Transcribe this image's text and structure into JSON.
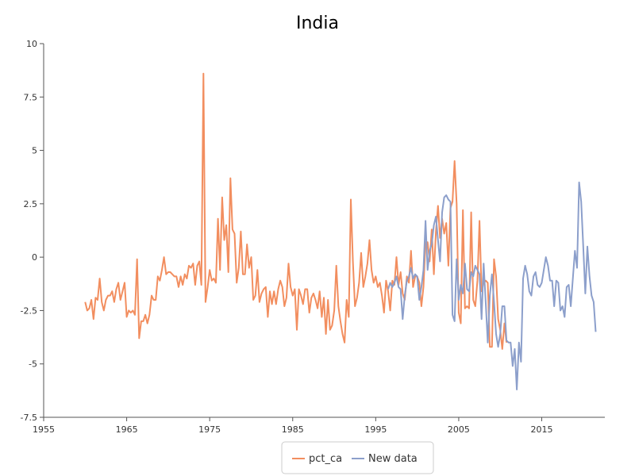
{
  "chart_data": {
    "type": "line",
    "title": "India",
    "xlabel": "",
    "ylabel": "",
    "xlim": [
      1955,
      2022.6
    ],
    "ylim": [
      -7.5,
      10
    ],
    "x_ticks": [
      1955,
      1965,
      1975,
      1985,
      1995,
      2005,
      2015
    ],
    "x_tick_labels": [
      "1955",
      "1965",
      "1975",
      "1985",
      "1995",
      "2005",
      "2015"
    ],
    "y_ticks": [
      -7.5,
      -5,
      -2.5,
      0,
      2.5,
      5,
      7.5,
      10
    ],
    "y_tick_labels": [
      "-7.5",
      "-5",
      "-2.5",
      "0",
      "2.5",
      "5",
      "7.5",
      "10"
    ],
    "grid": false,
    "legend_position": "bottom-center",
    "series": [
      {
        "name": "pct_ca",
        "color": "#f28e5f",
        "points": [
          [
            1960.0,
            -2.1
          ],
          [
            1960.25,
            -2.5
          ],
          [
            1960.5,
            -2.4
          ],
          [
            1960.75,
            -2.0
          ],
          [
            1961.0,
            -2.9
          ],
          [
            1961.25,
            -1.9
          ],
          [
            1961.5,
            -2.0
          ],
          [
            1961.75,
            -1.0
          ],
          [
            1962.0,
            -2.1
          ],
          [
            1962.25,
            -2.5
          ],
          [
            1962.5,
            -2.0
          ],
          [
            1962.75,
            -1.8
          ],
          [
            1963.0,
            -1.8
          ],
          [
            1963.25,
            -1.6
          ],
          [
            1963.5,
            -2.1
          ],
          [
            1963.75,
            -1.5
          ],
          [
            1964.0,
            -1.2
          ],
          [
            1964.25,
            -2.0
          ],
          [
            1964.5,
            -1.6
          ],
          [
            1964.75,
            -1.2
          ],
          [
            1965.0,
            -2.8
          ],
          [
            1965.25,
            -2.5
          ],
          [
            1965.5,
            -2.6
          ],
          [
            1965.75,
            -2.5
          ],
          [
            1966.0,
            -2.7
          ],
          [
            1966.25,
            -0.1
          ],
          [
            1966.5,
            -3.8
          ],
          [
            1966.75,
            -3.0
          ],
          [
            1967.0,
            -3.0
          ],
          [
            1967.25,
            -2.7
          ],
          [
            1967.5,
            -3.1
          ],
          [
            1967.75,
            -2.7
          ],
          [
            1968.0,
            -1.8
          ],
          [
            1968.25,
            -2.0
          ],
          [
            1968.5,
            -2.0
          ],
          [
            1968.75,
            -0.9
          ],
          [
            1969.0,
            -1.1
          ],
          [
            1969.25,
            -0.6
          ],
          [
            1969.5,
            0.0
          ],
          [
            1969.75,
            -0.8
          ],
          [
            1970.0,
            -0.7
          ],
          [
            1970.25,
            -0.7
          ],
          [
            1970.5,
            -0.8
          ],
          [
            1970.75,
            -0.9
          ],
          [
            1971.0,
            -0.9
          ],
          [
            1971.25,
            -1.4
          ],
          [
            1971.5,
            -0.9
          ],
          [
            1971.75,
            -1.3
          ],
          [
            1972.0,
            -0.8
          ],
          [
            1972.25,
            -1.0
          ],
          [
            1972.5,
            -0.4
          ],
          [
            1972.75,
            -0.5
          ],
          [
            1973.0,
            -0.3
          ],
          [
            1973.25,
            -1.3
          ],
          [
            1973.5,
            -0.4
          ],
          [
            1973.75,
            -0.2
          ],
          [
            1974.0,
            -1.3
          ],
          [
            1974.25,
            8.6
          ],
          [
            1974.5,
            -2.1
          ],
          [
            1974.75,
            -1.4
          ],
          [
            1975.0,
            -0.6
          ],
          [
            1975.25,
            -1.1
          ],
          [
            1975.5,
            -1.0
          ],
          [
            1975.75,
            -1.2
          ],
          [
            1976.0,
            1.8
          ],
          [
            1976.25,
            -0.6
          ],
          [
            1976.5,
            2.8
          ],
          [
            1976.75,
            0.8
          ],
          [
            1977.0,
            1.5
          ],
          [
            1977.25,
            -0.7
          ],
          [
            1977.5,
            3.7
          ],
          [
            1977.75,
            1.3
          ],
          [
            1978.0,
            1.1
          ],
          [
            1978.25,
            -1.2
          ],
          [
            1978.5,
            -0.5
          ],
          [
            1978.75,
            1.2
          ],
          [
            1979.0,
            -0.8
          ],
          [
            1979.25,
            -0.8
          ],
          [
            1979.5,
            0.6
          ],
          [
            1979.75,
            -0.5
          ],
          [
            1980.0,
            0.0
          ],
          [
            1980.25,
            -2.0
          ],
          [
            1980.5,
            -1.8
          ],
          [
            1980.75,
            -0.6
          ],
          [
            1981.0,
            -2.1
          ],
          [
            1981.25,
            -1.7
          ],
          [
            1981.5,
            -1.5
          ],
          [
            1981.75,
            -1.4
          ],
          [
            1982.0,
            -2.8
          ],
          [
            1982.25,
            -1.6
          ],
          [
            1982.5,
            -2.2
          ],
          [
            1982.75,
            -1.6
          ],
          [
            1983.0,
            -2.2
          ],
          [
            1983.25,
            -1.5
          ],
          [
            1983.5,
            -1.1
          ],
          [
            1983.75,
            -1.4
          ],
          [
            1984.0,
            -2.3
          ],
          [
            1984.25,
            -1.9
          ],
          [
            1984.5,
            -0.3
          ],
          [
            1984.75,
            -1.4
          ],
          [
            1985.0,
            -1.8
          ],
          [
            1985.25,
            -1.5
          ],
          [
            1985.5,
            -3.4
          ],
          [
            1985.75,
            -1.5
          ],
          [
            1986.0,
            -1.8
          ],
          [
            1986.25,
            -2.2
          ],
          [
            1986.5,
            -1.5
          ],
          [
            1986.75,
            -1.5
          ],
          [
            1987.0,
            -2.6
          ],
          [
            1987.25,
            -1.9
          ],
          [
            1987.5,
            -1.7
          ],
          [
            1987.75,
            -2.0
          ],
          [
            1988.0,
            -2.4
          ],
          [
            1988.25,
            -1.6
          ],
          [
            1988.5,
            -2.8
          ],
          [
            1988.75,
            -1.9
          ],
          [
            1989.0,
            -3.6
          ],
          [
            1989.25,
            -2.0
          ],
          [
            1989.5,
            -3.4
          ],
          [
            1989.75,
            -3.2
          ],
          [
            1990.0,
            -2.5
          ],
          [
            1990.25,
            -0.4
          ],
          [
            1990.5,
            -2.3
          ],
          [
            1990.75,
            -3.0
          ],
          [
            1991.0,
            -3.6
          ],
          [
            1991.25,
            -4.0
          ],
          [
            1991.5,
            -2.0
          ],
          [
            1991.75,
            -2.8
          ],
          [
            1992.0,
            2.7
          ],
          [
            1992.25,
            -0.2
          ],
          [
            1992.5,
            -2.3
          ],
          [
            1992.75,
            -1.9
          ],
          [
            1993.0,
            -1.2
          ],
          [
            1993.25,
            0.2
          ],
          [
            1993.5,
            -1.4
          ],
          [
            1993.75,
            -0.9
          ],
          [
            1994.0,
            -0.3
          ],
          [
            1994.25,
            0.8
          ],
          [
            1994.5,
            -0.6
          ],
          [
            1994.75,
            -1.2
          ],
          [
            1995.0,
            -0.9
          ],
          [
            1995.25,
            -1.4
          ],
          [
            1995.5,
            -1.2
          ],
          [
            1995.75,
            -1.8
          ],
          [
            1996.0,
            -2.6
          ],
          [
            1996.25,
            -1.1
          ],
          [
            1996.5,
            -1.6
          ],
          [
            1996.75,
            -2.5
          ],
          [
            1997.0,
            -1.1
          ],
          [
            1997.25,
            -1.3
          ],
          [
            1997.5,
            0.0
          ],
          [
            1997.75,
            -1.3
          ],
          [
            1998.0,
            -0.7
          ],
          [
            1998.25,
            -1.7
          ],
          [
            1998.5,
            -2.0
          ],
          [
            1998.75,
            -0.9
          ],
          [
            1999.0,
            -1.2
          ],
          [
            1999.25,
            0.3
          ],
          [
            1999.5,
            -1.4
          ],
          [
            1999.75,
            -0.9
          ],
          [
            2000.0,
            -0.9
          ],
          [
            2000.25,
            -1.2
          ],
          [
            2000.5,
            -2.3
          ],
          [
            2000.75,
            -1.4
          ],
          [
            2001.0,
            0.7
          ],
          [
            2001.25,
            0.7
          ],
          [
            2001.5,
            -0.2
          ],
          [
            2001.75,
            1.3
          ],
          [
            2002.0,
            -0.8
          ],
          [
            2002.25,
            1.2
          ],
          [
            2002.5,
            2.4
          ],
          [
            2002.75,
            0.9
          ],
          [
            2003.0,
            1.8
          ],
          [
            2003.25,
            1.1
          ],
          [
            2003.5,
            1.6
          ],
          [
            2003.75,
            -0.4
          ],
          [
            2004.0,
            2.3
          ],
          [
            2004.25,
            2.6
          ],
          [
            2004.5,
            4.5
          ],
          [
            2004.75,
            2.5
          ],
          [
            2005.0,
            -2.6
          ],
          [
            2005.25,
            -3.1
          ],
          [
            2005.5,
            2.2
          ],
          [
            2005.75,
            -2.4
          ],
          [
            2006.0,
            -2.3
          ],
          [
            2006.25,
            -2.4
          ],
          [
            2006.5,
            2.1
          ],
          [
            2006.75,
            -2.0
          ],
          [
            2007.0,
            -2.3
          ],
          [
            2007.25,
            -1.1
          ],
          [
            2007.5,
            1.7
          ],
          [
            2007.75,
            -1.6
          ],
          [
            2008.0,
            -1.2
          ],
          [
            2008.25,
            -1.1
          ],
          [
            2008.5,
            -1.2
          ],
          [
            2008.75,
            -4.2
          ],
          [
            2009.0,
            -4.2
          ],
          [
            2009.25,
            -0.1
          ],
          [
            2009.5,
            -0.9
          ],
          [
            2009.75,
            -2.9
          ],
          [
            2010.0,
            -3.4
          ],
          [
            2010.25,
            -4.3
          ],
          [
            2010.5,
            -3.1
          ],
          [
            2010.75,
            -4.0
          ]
        ]
      },
      {
        "name": "New data",
        "color": "#8c9fcb",
        "points": [
          [
            1996.5,
            -1.5
          ],
          [
            1996.75,
            -1.2
          ],
          [
            1997.0,
            -1.4
          ],
          [
            1997.25,
            -1.2
          ],
          [
            1997.5,
            -0.9
          ],
          [
            1997.75,
            -1.4
          ],
          [
            1998.0,
            -1.5
          ],
          [
            1998.25,
            -2.9
          ],
          [
            1998.5,
            -1.8
          ],
          [
            1998.75,
            -1.1
          ],
          [
            1999.0,
            -0.9
          ],
          [
            1999.25,
            -0.5
          ],
          [
            1999.5,
            -1.0
          ],
          [
            1999.75,
            -0.8
          ],
          [
            2000.0,
            -0.9
          ],
          [
            2000.25,
            -2.0
          ],
          [
            2000.5,
            -1.4
          ],
          [
            2000.75,
            -0.6
          ],
          [
            2001.0,
            1.7
          ],
          [
            2001.25,
            -0.6
          ],
          [
            2001.5,
            0.3
          ],
          [
            2001.75,
            0.6
          ],
          [
            2002.0,
            1.5
          ],
          [
            2002.25,
            1.9
          ],
          [
            2002.5,
            0.8
          ],
          [
            2002.75,
            -0.2
          ],
          [
            2003.0,
            2.1
          ],
          [
            2003.25,
            2.8
          ],
          [
            2003.5,
            2.9
          ],
          [
            2003.75,
            2.7
          ],
          [
            2004.0,
            2.6
          ],
          [
            2004.25,
            -2.7
          ],
          [
            2004.5,
            -3.0
          ],
          [
            2004.75,
            -0.1
          ],
          [
            2005.0,
            -2.0
          ],
          [
            2005.25,
            -1.3
          ],
          [
            2005.5,
            -1.7
          ],
          [
            2005.75,
            -0.3
          ],
          [
            2006.0,
            -1.5
          ],
          [
            2006.25,
            -1.6
          ],
          [
            2006.5,
            -0.7
          ],
          [
            2006.75,
            -0.9
          ],
          [
            2007.0,
            -0.4
          ],
          [
            2007.25,
            -0.6
          ],
          [
            2007.5,
            -0.8
          ],
          [
            2007.75,
            -2.9
          ],
          [
            2008.0,
            -0.3
          ],
          [
            2008.25,
            -2.1
          ],
          [
            2008.5,
            -4.0
          ],
          [
            2008.75,
            -1.8
          ],
          [
            2009.0,
            -0.8
          ],
          [
            2009.25,
            -2.1
          ],
          [
            2009.5,
            -3.6
          ],
          [
            2009.75,
            -4.2
          ],
          [
            2010.0,
            -3.6
          ],
          [
            2010.25,
            -2.3
          ],
          [
            2010.5,
            -2.3
          ],
          [
            2010.75,
            -3.9
          ],
          [
            2011.0,
            -4.0
          ],
          [
            2011.25,
            -4.0
          ],
          [
            2011.5,
            -5.1
          ],
          [
            2011.75,
            -4.3
          ],
          [
            2012.0,
            -6.2
          ],
          [
            2012.25,
            -4.0
          ],
          [
            2012.5,
            -4.9
          ],
          [
            2012.75,
            -1.0
          ],
          [
            2013.0,
            -0.4
          ],
          [
            2013.25,
            -0.8
          ],
          [
            2013.5,
            -1.6
          ],
          [
            2013.75,
            -1.8
          ],
          [
            2014.0,
            -0.9
          ],
          [
            2014.25,
            -0.7
          ],
          [
            2014.5,
            -1.3
          ],
          [
            2014.75,
            -1.4
          ],
          [
            2015.0,
            -1.2
          ],
          [
            2015.25,
            -0.6
          ],
          [
            2015.5,
            0.0
          ],
          [
            2015.75,
            -0.4
          ],
          [
            2016.0,
            -1.1
          ],
          [
            2016.25,
            -1.1
          ],
          [
            2016.5,
            -2.3
          ],
          [
            2016.75,
            -1.1
          ],
          [
            2017.0,
            -1.2
          ],
          [
            2017.25,
            -2.5
          ],
          [
            2017.5,
            -2.3
          ],
          [
            2017.75,
            -2.8
          ],
          [
            2018.0,
            -1.4
          ],
          [
            2018.25,
            -1.3
          ],
          [
            2018.5,
            -2.3
          ],
          [
            2018.75,
            -1.0
          ],
          [
            2019.0,
            0.3
          ],
          [
            2019.25,
            -0.5
          ],
          [
            2019.5,
            3.5
          ],
          [
            2019.75,
            2.6
          ],
          [
            2020.0,
            0.5
          ],
          [
            2020.25,
            -1.7
          ],
          [
            2020.5,
            0.5
          ],
          [
            2020.75,
            -0.9
          ],
          [
            2021.0,
            -1.8
          ],
          [
            2021.25,
            -2.1
          ],
          [
            2021.5,
            -3.5
          ]
        ]
      }
    ]
  }
}
